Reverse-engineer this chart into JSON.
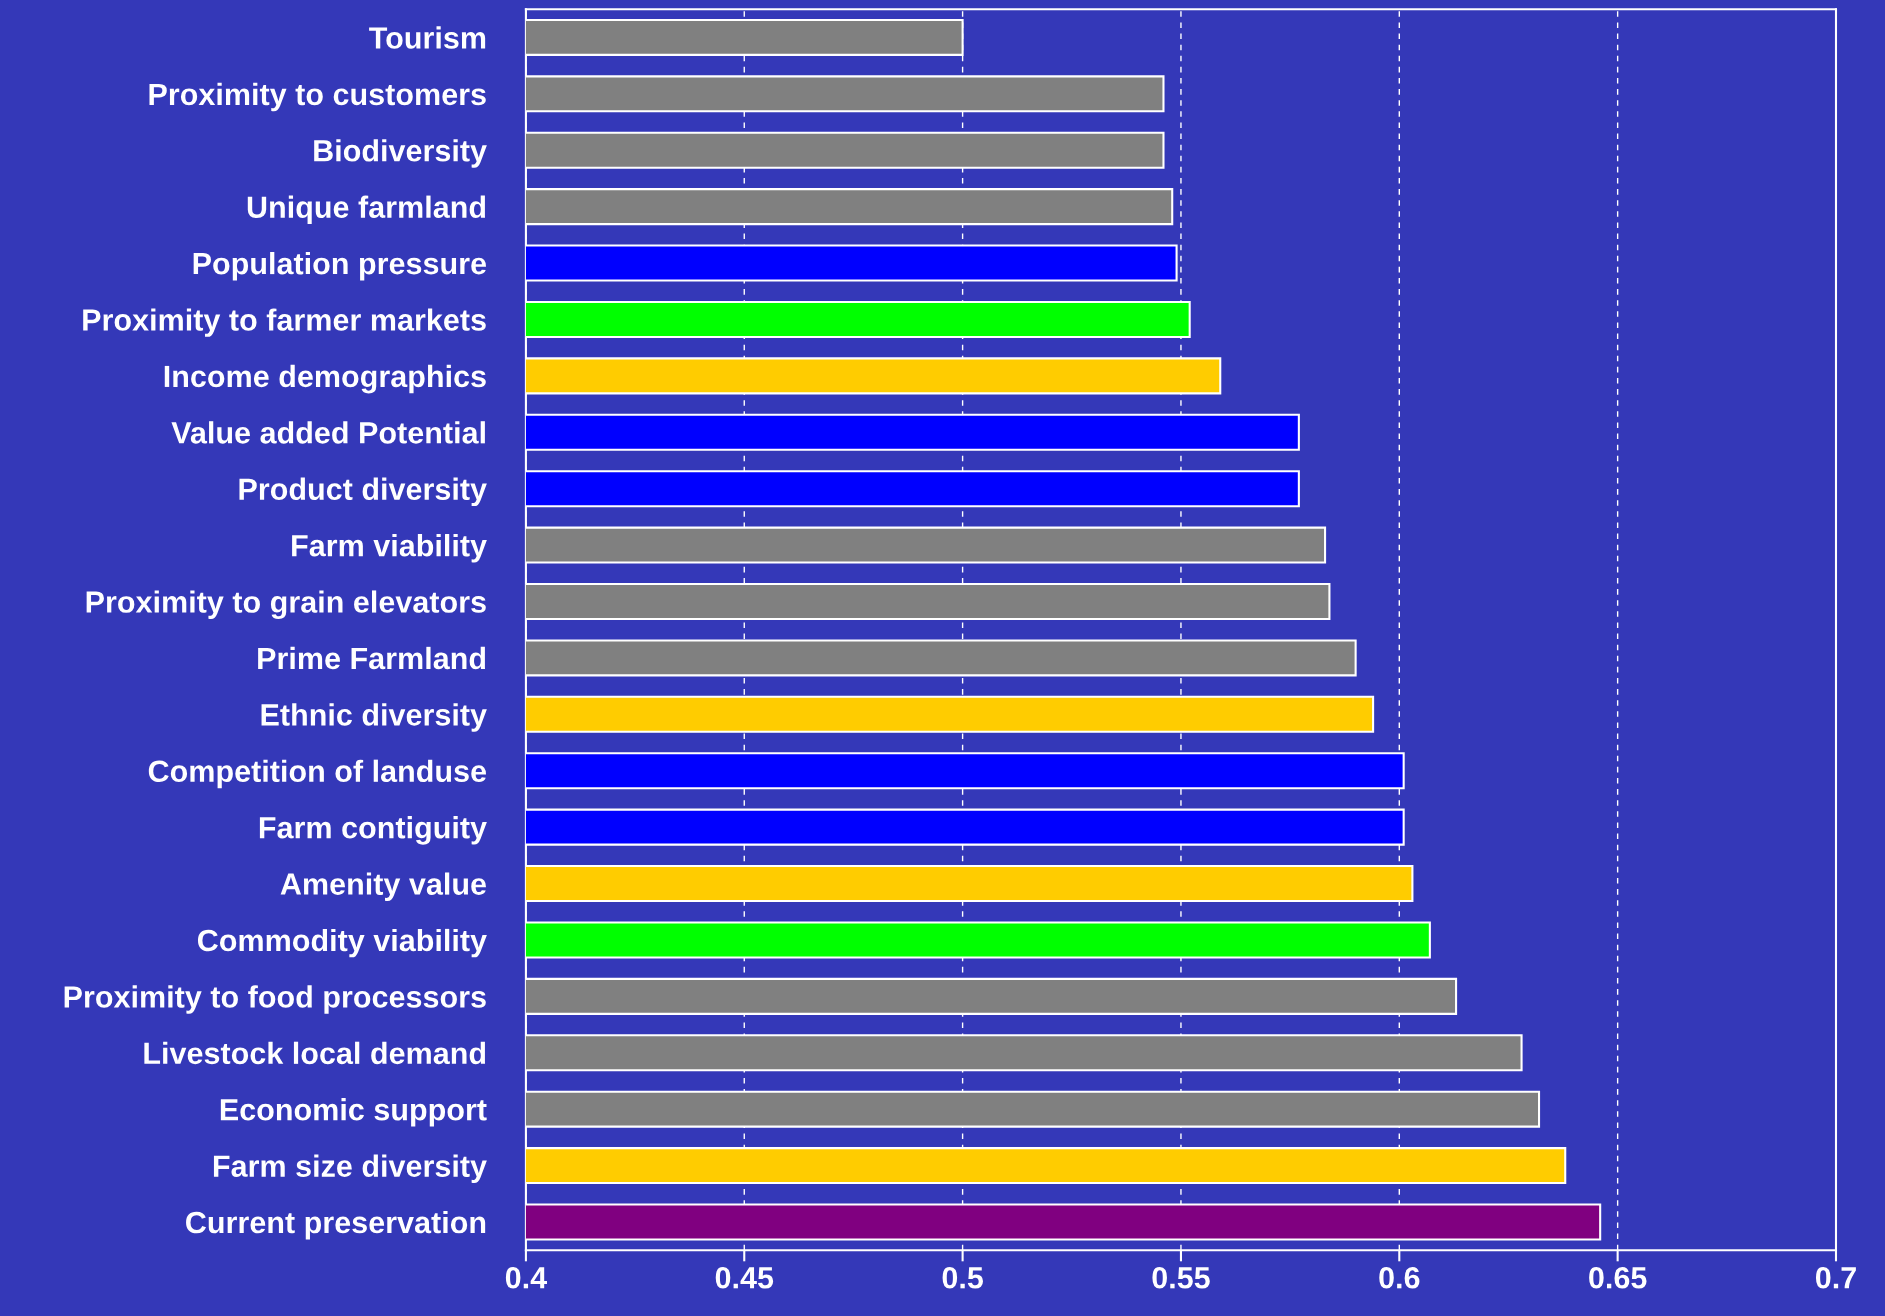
{
  "chart_data": {
    "type": "bar",
    "orientation": "horizontal",
    "categories": [
      "Tourism",
      "Proximity to customers",
      "Biodiversity",
      "Unique farmland",
      "Population pressure",
      "Proximity to farmer markets",
      "Income demographics",
      "Value added Potential",
      "Product diversity",
      "Farm viability",
      "Proximity to grain elevators",
      "Prime Farmland",
      "Ethnic diversity",
      "Competition of landuse",
      "Farm contiguity",
      "Amenity value",
      "Commodity viability",
      "Proximity to food processors",
      "Livestock local demand",
      "Economic support",
      "Farm size diversity",
      "Current preservation"
    ],
    "values": [
      0.5,
      0.546,
      0.546,
      0.548,
      0.549,
      0.552,
      0.559,
      0.577,
      0.577,
      0.583,
      0.584,
      0.59,
      0.594,
      0.601,
      0.601,
      0.603,
      0.607,
      0.613,
      0.628,
      0.632,
      0.638,
      0.646
    ],
    "colors": [
      "#808080",
      "#808080",
      "#808080",
      "#808080",
      "#0000ff",
      "#00ff00",
      "#ffcc00",
      "#0000ff",
      "#0000ff",
      "#808080",
      "#808080",
      "#808080",
      "#ffcc00",
      "#0000ff",
      "#0000ff",
      "#ffcc00",
      "#00ff00",
      "#808080",
      "#808080",
      "#808080",
      "#ffcc00",
      "#800080"
    ],
    "xlim": [
      0.4,
      0.7
    ],
    "xticks": [
      0.4,
      0.45,
      0.5,
      0.55,
      0.6,
      0.65,
      0.7
    ],
    "grid": "x"
  }
}
